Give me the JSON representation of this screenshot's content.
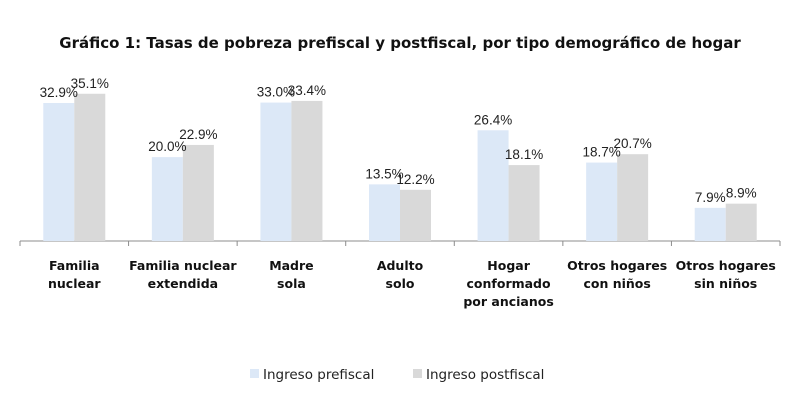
{
  "chart_data": {
    "type": "bar",
    "title": "Gráfico 1: Tasas de pobreza prefiscal y postfiscal, por tipo demográfico de hogar",
    "categories": [
      [
        "Familia",
        "nuclear"
      ],
      [
        "Familia nuclear",
        "extendida"
      ],
      [
        "Madre",
        "sola"
      ],
      [
        "Adulto",
        "solo"
      ],
      [
        "Hogar",
        "conformado",
        "por ancianos"
      ],
      [
        "Otros hogares",
        "con niños"
      ],
      [
        "Otros hogares",
        "sin niños"
      ]
    ],
    "series": [
      {
        "name": "Ingreso prefiscal",
        "color": "#dce8f7",
        "values": [
          32.9,
          20.0,
          33.0,
          13.5,
          26.4,
          18.7,
          7.9
        ],
        "labels": [
          "32.9%",
          "20.0%",
          "33.0%",
          "13.5%",
          "26.4%",
          "18.7%",
          "7.9%"
        ]
      },
      {
        "name": "Ingreso postfiscal",
        "color": "#d9d9d9",
        "values": [
          35.1,
          22.9,
          33.4,
          12.2,
          18.1,
          20.7,
          8.9
        ],
        "labels": [
          "35.1%",
          "22.9%",
          "33.4%",
          "12.2%",
          "18.1%",
          "20.7%",
          "8.9%"
        ]
      }
    ],
    "ylim": [
      0,
      36
    ],
    "grid": false,
    "legend_position": "bottom"
  }
}
